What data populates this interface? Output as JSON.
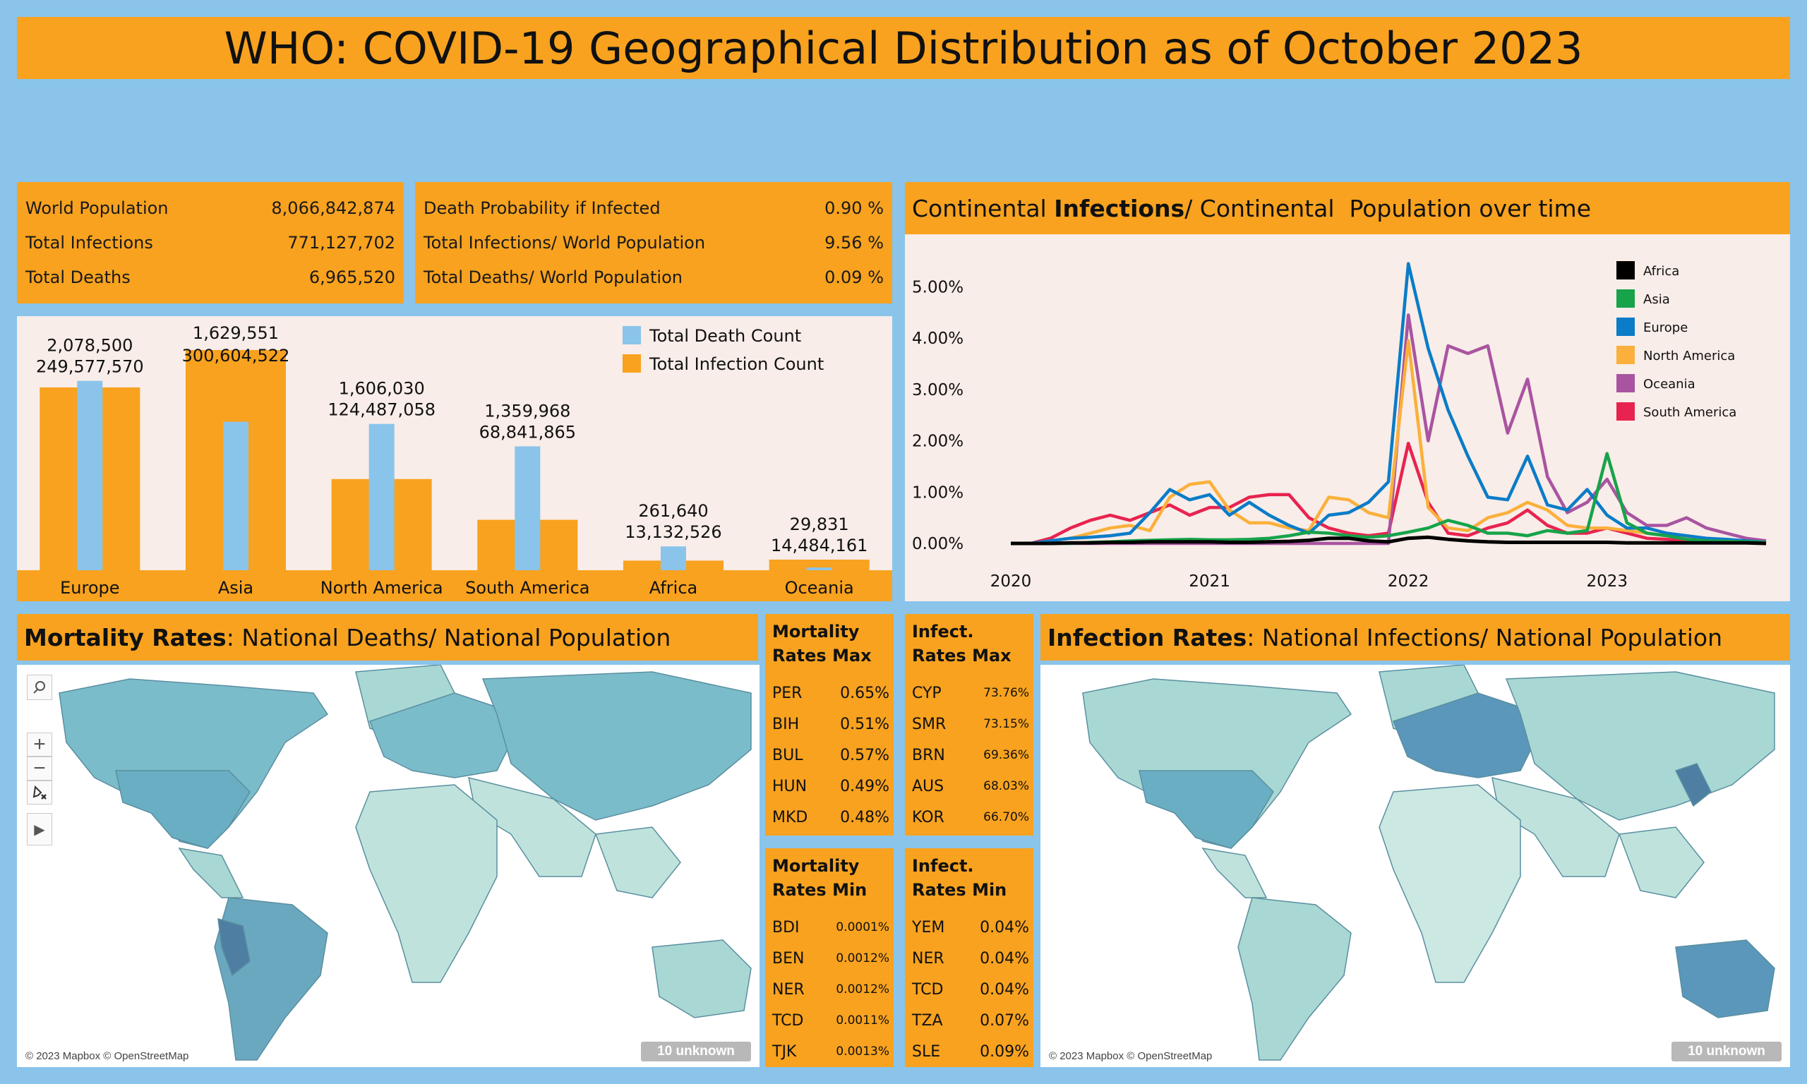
{
  "title": "WHO: COVID-19 Geographical Distribution as of October 2023",
  "kpi_left": [
    {
      "label": "World Population",
      "value": "8,066,842,874"
    },
    {
      "label": "Total Infections",
      "value": "771,127,702"
    },
    {
      "label": "Total Deaths",
      "value": "6,965,520"
    }
  ],
  "kpi_right": [
    {
      "label": "Death Probability if Infected",
      "value": "0.90 %"
    },
    {
      "label": "Total Infections/ World Population",
      "value": "9.56 %"
    },
    {
      "label": "Total Deaths/ World Population",
      "value": "0.09 %"
    }
  ],
  "colors": {
    "orange": "#f8a21f",
    "light_blue": "#8ac4eb",
    "panel_bg": "#f8ede8"
  },
  "bar_chart": {
    "type": "bar",
    "categories": [
      "Europe",
      "Asia",
      "North America",
      "South America",
      "Africa",
      "Oceania"
    ],
    "series": [
      {
        "name": "Total Death Count",
        "color": "#8ac4eb",
        "values": [
          2078500,
          1629551,
          1606030,
          1359968,
          261640,
          29831
        ]
      },
      {
        "name": "Total Infection Count",
        "color": "#f8a21f",
        "values": [
          249577570,
          300604522,
          124487058,
          68841865,
          13132526,
          14484161
        ]
      }
    ],
    "death_labels": [
      "2,078,500",
      "1,629,551",
      "1,606,030",
      "1,359,968",
      "261,640",
      "29,831"
    ],
    "infection_labels": [
      "249,577,570",
      "300,604,522",
      "124,487,058",
      "68,841,865",
      "13,132,526",
      "14,484,161"
    ],
    "legend_position": "top-right"
  },
  "line_chart": {
    "title_prefix": "Continental ",
    "title_bold": "Infections",
    "title_suffix": "/ Continental  Population over time",
    "type": "line",
    "x": [
      2020.0,
      2020.1,
      2020.2,
      2020.3,
      2020.4,
      2020.5,
      2020.6,
      2020.7,
      2020.8,
      2020.9,
      2021.0,
      2021.1,
      2021.2,
      2021.3,
      2021.4,
      2021.5,
      2021.6,
      2021.7,
      2021.8,
      2021.9,
      2022.0,
      2022.1,
      2022.2,
      2022.3,
      2022.4,
      2022.5,
      2022.6,
      2022.7,
      2022.8,
      2022.9,
      2023.0,
      2023.1,
      2023.2,
      2023.3,
      2023.4,
      2023.5,
      2023.6,
      2023.7,
      2023.8
    ],
    "x_ticks": [
      "2020",
      "2021",
      "2022",
      "2023"
    ],
    "y_ticks": [
      "0.00%",
      "1.00%",
      "2.00%",
      "3.00%",
      "4.00%",
      "5.00%"
    ],
    "ylim": [
      0,
      5.5
    ],
    "series": [
      {
        "name": "Africa",
        "color": "#000000",
        "values": [
          0,
          0,
          0,
          0.01,
          0.01,
          0.02,
          0.02,
          0.03,
          0.03,
          0.03,
          0.03,
          0.02,
          0.02,
          0.03,
          0.04,
          0.06,
          0.1,
          0.1,
          0.05,
          0.03,
          0.1,
          0.12,
          0.08,
          0.05,
          0.03,
          0.02,
          0.02,
          0.02,
          0.02,
          0.02,
          0.02,
          0.01,
          0.01,
          0.01,
          0.01,
          0.01,
          0.01,
          0.01,
          0.0
        ]
      },
      {
        "name": "Asia",
        "color": "#17a34a",
        "values": [
          0,
          0,
          0,
          0,
          0.02,
          0.03,
          0.05,
          0.06,
          0.07,
          0.08,
          0.07,
          0.07,
          0.08,
          0.1,
          0.15,
          0.22,
          0.2,
          0.15,
          0.12,
          0.15,
          0.22,
          0.3,
          0.45,
          0.35,
          0.2,
          0.2,
          0.15,
          0.25,
          0.2,
          0.25,
          1.75,
          0.4,
          0.2,
          0.15,
          0.08,
          0.05,
          0.04,
          0.03,
          0.02
        ]
      },
      {
        "name": "Europe",
        "color": "#0a7cc8",
        "values": [
          0,
          0,
          0.05,
          0.1,
          0.12,
          0.15,
          0.2,
          0.6,
          1.05,
          0.85,
          0.95,
          0.55,
          0.8,
          0.55,
          0.35,
          0.2,
          0.55,
          0.6,
          0.8,
          1.2,
          5.45,
          3.8,
          2.6,
          1.7,
          0.9,
          0.85,
          1.7,
          0.75,
          0.65,
          1.05,
          0.55,
          0.3,
          0.3,
          0.2,
          0.15,
          0.1,
          0.08,
          0.05,
          0.02
        ]
      },
      {
        "name": "North America",
        "color": "#fbb03b",
        "values": [
          0,
          0,
          0.05,
          0.1,
          0.2,
          0.3,
          0.35,
          0.25,
          0.9,
          1.15,
          1.2,
          0.65,
          0.4,
          0.4,
          0.3,
          0.25,
          0.9,
          0.85,
          0.6,
          0.5,
          3.95,
          0.7,
          0.3,
          0.25,
          0.5,
          0.6,
          0.8,
          0.65,
          0.35,
          0.3,
          0.3,
          0.25,
          0.2,
          0.15,
          0.1,
          0.08,
          0.05,
          0.03,
          0.02
        ]
      },
      {
        "name": "Oceania",
        "color": "#a954a1",
        "values": [
          0,
          0,
          0,
          0,
          0,
          0,
          0,
          0,
          0,
          0,
          0,
          0,
          0,
          0,
          0,
          0,
          0,
          0,
          0,
          0,
          4.45,
          2.0,
          3.85,
          3.7,
          3.85,
          2.15,
          3.2,
          1.3,
          0.6,
          0.8,
          1.25,
          0.6,
          0.35,
          0.35,
          0.5,
          0.3,
          0.2,
          0.1,
          0.05
        ]
      },
      {
        "name": "South America",
        "color": "#e8234f",
        "values": [
          0,
          0,
          0.1,
          0.3,
          0.45,
          0.55,
          0.45,
          0.6,
          0.75,
          0.55,
          0.7,
          0.7,
          0.9,
          0.95,
          0.95,
          0.5,
          0.3,
          0.2,
          0.15,
          0.2,
          1.95,
          0.8,
          0.2,
          0.15,
          0.3,
          0.4,
          0.65,
          0.35,
          0.2,
          0.2,
          0.3,
          0.2,
          0.1,
          0.08,
          0.05,
          0.04,
          0.03,
          0.02,
          0.01
        ]
      }
    ],
    "legend_position": "top-right"
  },
  "mortality_header": {
    "bold": "Mortality Rates",
    "rest": ": National Deaths/ National Population"
  },
  "infection_header": {
    "bold": "Infection Rates",
    "rest": ": National Infections/ National Population"
  },
  "mortality_max": {
    "title": "Mortality Rates Max",
    "items": [
      {
        "code": "PER",
        "value": "0.65%"
      },
      {
        "code": "BIH",
        "value": "0.51%"
      },
      {
        "code": "BUL",
        "value": "0.57%"
      },
      {
        "code": "HUN",
        "value": "0.49%"
      },
      {
        "code": "MKD",
        "value": "0.48%"
      }
    ]
  },
  "infect_max": {
    "title": "Infect. Rates Max",
    "items": [
      {
        "code": "CYP",
        "value": "73.76%"
      },
      {
        "code": "SMR",
        "value": "73.15%"
      },
      {
        "code": "BRN",
        "value": "69.36%"
      },
      {
        "code": "AUS",
        "value": "68.03%"
      },
      {
        "code": "KOR",
        "value": "66.70%"
      }
    ]
  },
  "mortality_min": {
    "title": "Mortality Rates Min",
    "items": [
      {
        "code": "BDI",
        "value": "0.0001%"
      },
      {
        "code": "BEN",
        "value": "0.0012%"
      },
      {
        "code": "NER",
        "value": "0.0012%"
      },
      {
        "code": "TCD",
        "value": "0.0011%"
      },
      {
        "code": "TJK",
        "value": "0.0013%"
      }
    ]
  },
  "infect_min": {
    "title": "Infect. Rates Min",
    "items": [
      {
        "code": "YEM",
        "value": "0.04%"
      },
      {
        "code": "NER",
        "value": "0.04%"
      },
      {
        "code": "TCD",
        "value": "0.04%"
      },
      {
        "code": "TZA",
        "value": "0.07%"
      },
      {
        "code": "SLE",
        "value": "0.09%"
      }
    ]
  },
  "map": {
    "attribution": "© 2023 Mapbox © OpenStreetMap",
    "unknown": "10 unknown"
  },
  "map_controls": {
    "search": "search-icon",
    "zoom_in": "+",
    "zoom_out": "−",
    "pin": "pin-icon",
    "play": "▶"
  }
}
